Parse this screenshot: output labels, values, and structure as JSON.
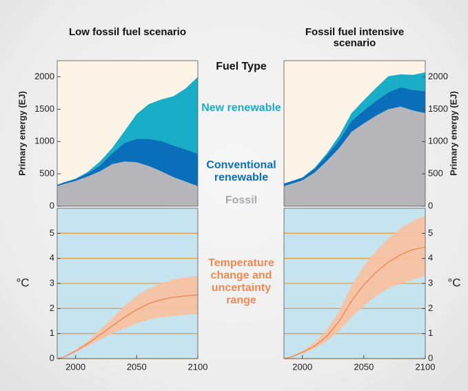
{
  "legend": {
    "title": "Fuel Type"
  },
  "annotation": "Temperature change and uncertainty range",
  "chart_data": [
    {
      "type": "area",
      "title": "Low fossil fuel scenario",
      "ylabel": "Primary energy (EJ)",
      "yaxis_position": "left",
      "background": "#fdf3e7",
      "x": [
        1985,
        1990,
        2000,
        2010,
        2020,
        2030,
        2040,
        2050,
        2060,
        2070,
        2080,
        2090,
        2100
      ],
      "xlim": [
        1985,
        2100
      ],
      "ylim": [
        0,
        2250
      ],
      "yticks": [
        0,
        500,
        1000,
        1500,
        2000
      ],
      "series": [
        {
          "name": "Fossil",
          "color": "#b6b6ba",
          "values": [
            310,
            340,
            390,
            460,
            540,
            650,
            690,
            680,
            620,
            540,
            450,
            380,
            310
          ]
        },
        {
          "name": "Conventional renewable",
          "color": "#0a6fba",
          "values": [
            20,
            25,
            30,
            50,
            90,
            170,
            290,
            360,
            420,
            470,
            490,
            500,
            500
          ]
        },
        {
          "name": "New renewable",
          "color": "#19adc7",
          "values": [
            0,
            0,
            5,
            20,
            60,
            80,
            180,
            385,
            540,
            640,
            760,
            940,
            1190
          ]
        }
      ]
    },
    {
      "type": "area",
      "title": "Fossil fuel intensive scenario",
      "ylabel": "Primary energy (EJ)",
      "yaxis_position": "right",
      "background": "#fdf3e7",
      "x": [
        1985,
        1990,
        2000,
        2010,
        2020,
        2030,
        2040,
        2050,
        2060,
        2070,
        2080,
        2090,
        2100
      ],
      "xlim": [
        1985,
        2100
      ],
      "ylim": [
        0,
        2250
      ],
      "yticks": [
        0,
        500,
        1000,
        1500,
        2000
      ],
      "series": [
        {
          "color": "#b6b6ba",
          "values": [
            310,
            340,
            400,
            520,
            700,
            900,
            1150,
            1280,
            1400,
            1500,
            1540,
            1480,
            1440
          ]
        },
        {
          "color": "#0a6fba",
          "values": [
            40,
            40,
            40,
            60,
            90,
            120,
            170,
            200,
            230,
            260,
            300,
            320,
            340
          ]
        },
        {
          "color": "#19adc7",
          "values": [
            0,
            0,
            5,
            15,
            30,
            70,
            120,
            160,
            200,
            250,
            200,
            230,
            290
          ]
        }
      ]
    },
    {
      "type": "band",
      "ylabel": "°C",
      "yaxis_position": "left",
      "background": "#c6e4ef",
      "grid": true,
      "grid_color": "#e3a046",
      "band_color": "#f9c09f",
      "line_color": "#ef8a5c",
      "x": [
        1985,
        1990,
        2000,
        2010,
        2020,
        2030,
        2040,
        2050,
        2060,
        2070,
        2080,
        2090,
        2100
      ],
      "xlim": [
        1985,
        2100
      ],
      "xticks": [
        2000,
        2050,
        2100
      ],
      "ylim": [
        0,
        6
      ],
      "yticks": [
        0,
        1,
        2,
        3,
        4,
        5
      ],
      "values": [
        0,
        0.05,
        0.3,
        0.6,
        0.95,
        1.3,
        1.65,
        1.95,
        2.2,
        2.35,
        2.45,
        2.5,
        2.55
      ],
      "low": [
        0,
        0.04,
        0.25,
        0.5,
        0.75,
        1.0,
        1.2,
        1.4,
        1.55,
        1.65,
        1.7,
        1.75,
        1.78
      ],
      "high": [
        0,
        0.06,
        0.35,
        0.7,
        1.15,
        1.6,
        2.1,
        2.5,
        2.8,
        3.0,
        3.15,
        3.25,
        3.3
      ]
    },
    {
      "type": "band",
      "ylabel": "°C",
      "yaxis_position": "right",
      "background": "#c6e4ef",
      "grid": true,
      "grid_color": "#e3a046",
      "band_color": "#f9c09f",
      "line_color": "#ef8a5c",
      "x": [
        1985,
        1990,
        2000,
        2010,
        2020,
        2030,
        2040,
        2050,
        2060,
        2070,
        2080,
        2090,
        2100
      ],
      "xlim": [
        1985,
        2100
      ],
      "xticks": [
        2000,
        2050,
        2100
      ],
      "ylim": [
        0,
        6
      ],
      "yticks": [
        0,
        1,
        2,
        3,
        4,
        5
      ],
      "values": [
        0,
        0.05,
        0.25,
        0.5,
        0.9,
        1.5,
        2.3,
        2.95,
        3.45,
        3.85,
        4.15,
        4.35,
        4.45
      ],
      "low": [
        0,
        0.04,
        0.2,
        0.4,
        0.7,
        1.1,
        1.65,
        2.1,
        2.5,
        2.8,
        3.0,
        3.15,
        3.3
      ],
      "high": [
        0,
        0.06,
        0.3,
        0.65,
        1.15,
        1.9,
        2.9,
        3.7,
        4.3,
        4.8,
        5.2,
        5.5,
        5.7
      ]
    }
  ]
}
